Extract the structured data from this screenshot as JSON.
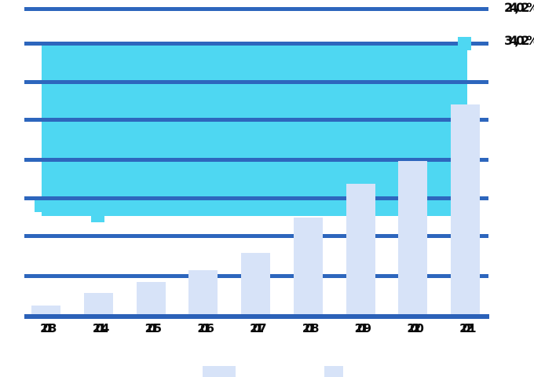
{
  "chart_data": {
    "type": "bar",
    "categories": [
      "2013",
      "2014",
      "2015",
      "2016",
      "2017",
      "2018",
      "2019",
      "2020",
      "2021"
    ],
    "series": [
      {
        "name": "lavender-bars",
        "type": "bar",
        "values": [
          0.23,
          0.55,
          0.84,
          1.15,
          1.6,
          2.52,
          3.41,
          4.0,
          5.48
        ]
      },
      {
        "name": "cyan-band-line",
        "type": "line-band",
        "band_low": 2.56,
        "band_high": 7.04,
        "visible_markers": [
          {
            "category": "2013",
            "value": 2.85
          },
          {
            "category": "2014",
            "value": 2.57
          },
          {
            "category": "2021",
            "value": 7.06
          }
        ]
      }
    ],
    "title": "",
    "xlabel": "",
    "ylabel": "",
    "ylim": [
      0,
      8
    ],
    "y_gridline_count": 9,
    "y_tick_labels_visible": false,
    "grid": true,
    "legend_position": "bottom",
    "annotations": [
      {
        "text": "24,02%",
        "position": "right-top"
      },
      {
        "text": "34,02%",
        "position": "right-upper"
      }
    ]
  },
  "colors": {
    "background": "#ffffff",
    "bar_fill": "#d7e3f8",
    "band_fill": "#4ed7f2",
    "gridline": "#2d66bd",
    "axis_line": "#2b61b8",
    "label_text": "#0a0a0a"
  },
  "legend": {
    "items": [
      {
        "name": "legend-swatch-1",
        "color": "#d7e3f8",
        "label": ""
      },
      {
        "name": "legend-swatch-2",
        "color": "#d7e3f8",
        "label": ""
      }
    ]
  }
}
